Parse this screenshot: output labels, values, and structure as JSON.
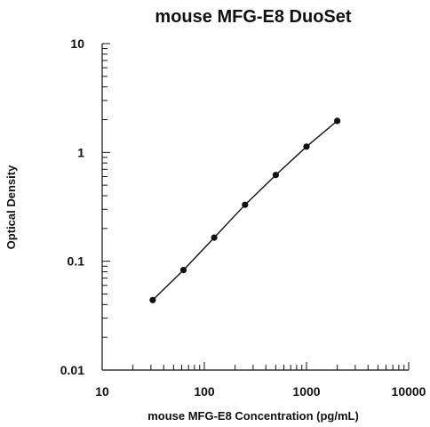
{
  "chart_data": {
    "type": "line",
    "title": "mouse MFG-E8 DuoSet",
    "xlabel": "mouse MFG-E8 Concentration (pg/mL)",
    "ylabel": "Optical Density",
    "x_scale": "log",
    "y_scale": "log",
    "xlim": [
      10,
      10000
    ],
    "ylim": [
      0.01,
      10
    ],
    "x_ticks": [
      "10",
      "100",
      "1000",
      "10000"
    ],
    "y_ticks": [
      "0.01",
      "0.1",
      "1",
      "10"
    ],
    "grid": false,
    "legend": "none",
    "series": [
      {
        "x": [
          31.25,
          62.5,
          125,
          250,
          500,
          1000,
          2000
        ],
        "y": [
          0.044,
          0.083,
          0.165,
          0.33,
          0.62,
          1.13,
          1.95
        ]
      }
    ]
  }
}
